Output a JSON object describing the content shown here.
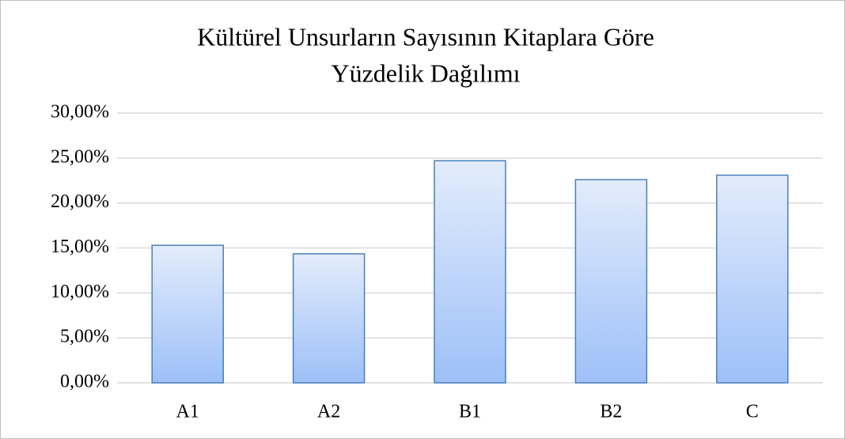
{
  "chart_data": {
    "type": "bar",
    "title": [
      "Kültürel Unsurların  Sayısının Kitaplara Göre",
      "Yüzdelik Dağılımı"
    ],
    "categories": [
      "A1",
      "A2",
      "B1",
      "B2",
      "C"
    ],
    "values": [
      15.3,
      14.35,
      24.7,
      22.6,
      23.1
    ],
    "color": "#9dc0f8",
    "ylim": [
      0,
      30
    ],
    "yticks": [
      {
        "value": 0,
        "label": "0,00%"
      },
      {
        "value": 5,
        "label": "5,00%"
      },
      {
        "value": 10,
        "label": "10,00%"
      },
      {
        "value": 15,
        "label": "15,00%"
      },
      {
        "value": 20,
        "label": "20,00%"
      },
      {
        "value": 25,
        "label": "25,00%"
      },
      {
        "value": 30,
        "label": "30,00%"
      }
    ],
    "grid": true
  }
}
